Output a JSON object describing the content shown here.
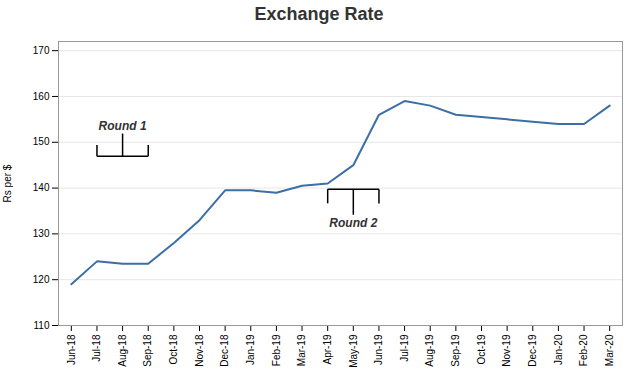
{
  "chart_data": {
    "type": "line",
    "title": "Exchange Rate",
    "ylabel": "Rs per $",
    "categories": [
      "Jun-18",
      "Jul-18",
      "Aug-18",
      "Sep-18",
      "Oct-18",
      "Nov-18",
      "Dec-18",
      "Jan-19",
      "Feb-19",
      "Mar-19",
      "Apr-19",
      "May-19",
      "Jun-19",
      "Jul-19",
      "Aug-19",
      "Sep-19",
      "Oct-19",
      "Nov-19",
      "Dec-19",
      "Jan-20",
      "Feb-20",
      "Mar-20"
    ],
    "values": [
      119,
      124,
      123.5,
      123.5,
      128,
      133,
      139.5,
      139.5,
      139,
      140.5,
      141,
      145,
      156,
      159,
      158,
      156,
      155.5,
      155,
      154.5,
      154,
      154,
      158
    ],
    "color": "#3C6FA5",
    "ylim": [
      110,
      172
    ],
    "yticks": [
      110,
      120,
      130,
      140,
      150,
      160,
      170
    ],
    "grid": true,
    "annotations": [
      {
        "text": "Round 1",
        "from": "Jul-18",
        "to": "Sep-18",
        "position": "above"
      },
      {
        "text": "Round 2",
        "from": "Apr-19",
        "to": "Jun-19",
        "position": "below"
      }
    ]
  }
}
